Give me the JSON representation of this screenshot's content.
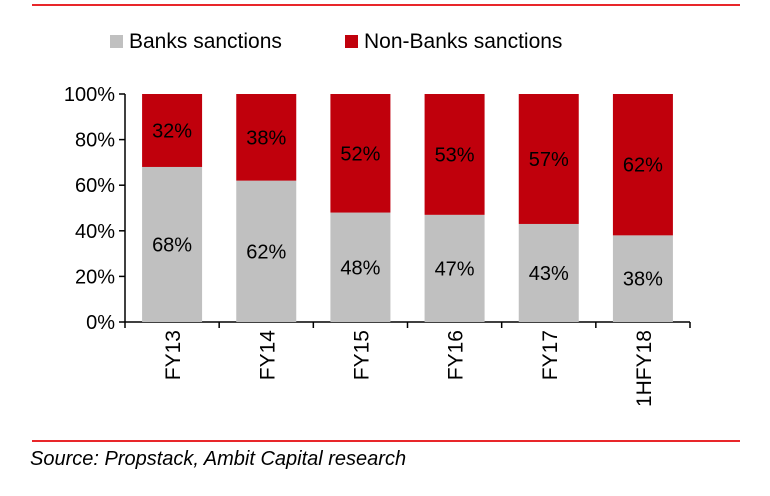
{
  "chart_data": {
    "type": "bar",
    "stacked": true,
    "categories": [
      "FY13",
      "FY14",
      "FY15",
      "FY16",
      "FY17",
      "1HFY18"
    ],
    "series": [
      {
        "name": "Banks sanctions",
        "values": [
          68,
          62,
          48,
          47,
          43,
          38
        ],
        "labels": [
          "68%",
          "62%",
          "48%",
          "47%",
          "43%",
          "38%"
        ],
        "color": "#c0c0c0"
      },
      {
        "name": "Non-Banks sanctions",
        "values": [
          32,
          38,
          52,
          53,
          57,
          62
        ],
        "labels": [
          "32%",
          "38%",
          "52%",
          "53%",
          "57%",
          "62%"
        ],
        "color": "#c0000c"
      }
    ],
    "y_ticks": [
      "0%",
      "20%",
      "40%",
      "60%",
      "80%",
      "100%"
    ],
    "ylim": [
      0,
      100
    ],
    "legend_position": "top",
    "grid": false
  },
  "source": "Source: Propstack, Ambit Capital research",
  "accent_color": "#e8262a"
}
